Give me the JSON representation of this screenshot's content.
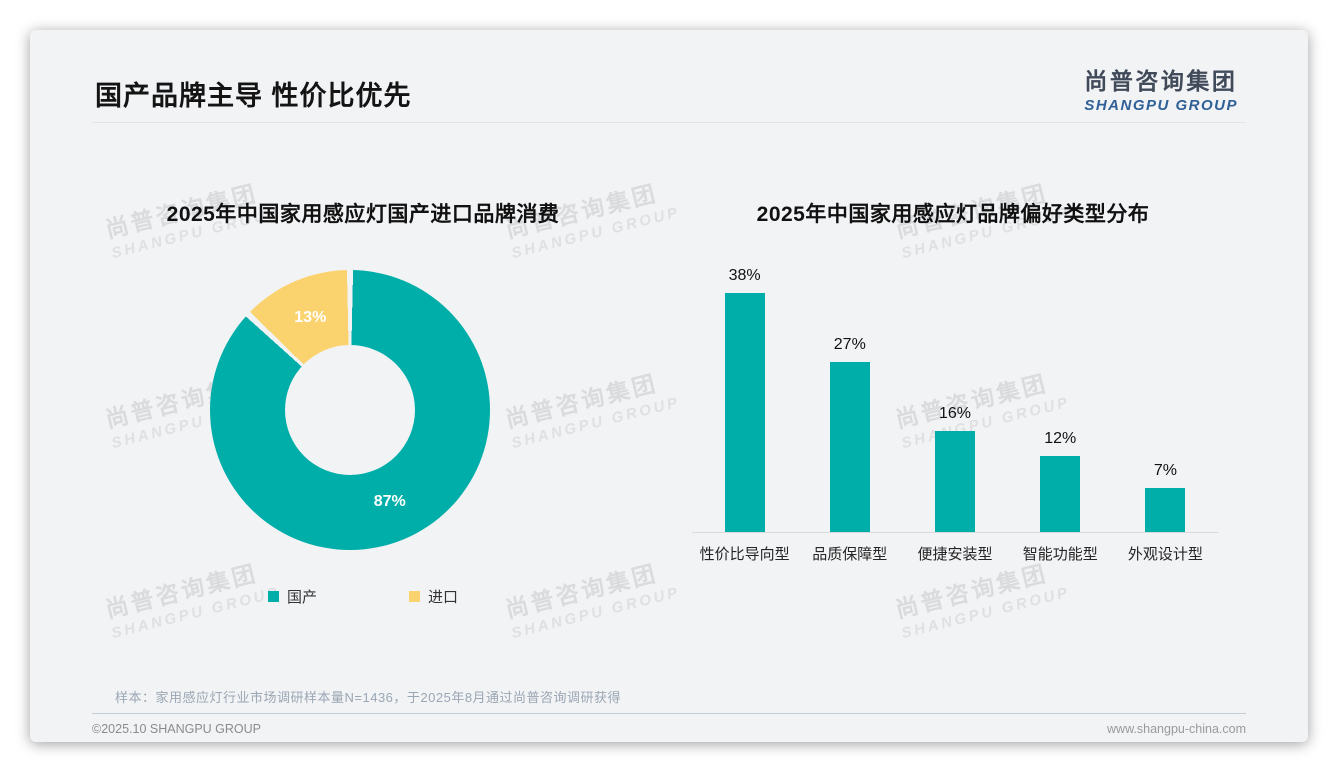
{
  "slide": {
    "title": "国产品牌主导 性价比优先",
    "logo": {
      "cn": "尚普咨询集团",
      "en": "SHANGPU GROUP"
    },
    "watermark": {
      "cn": "尚普咨询集团",
      "en": "SHANGPU GROUP"
    },
    "note": "样本：家用感应灯行业市场调研样本量N=1436，于2025年8月通过尚普咨询调研获得",
    "footer": {
      "left": "©2025.10 SHANGPU GROUP",
      "right": "www.shangpu-china.com"
    }
  },
  "colors": {
    "teal": "#00AEA9",
    "yellow": "#FBD36E",
    "card_bg": "#F2F3F5"
  },
  "chart_data": [
    {
      "type": "pie",
      "donut": true,
      "title": "2025年中国家用感应灯国产进口品牌消费",
      "categories": [
        "国产",
        "进口"
      ],
      "values": [
        87,
        13
      ],
      "labels": [
        "87%",
        "13%"
      ],
      "unit": "%",
      "colors": [
        "#00AEA9",
        "#FBD36E"
      ],
      "legend_position": "bottom"
    },
    {
      "type": "bar",
      "title": "2025年中国家用感应灯品牌偏好类型分布",
      "categories": [
        "性价比导向型",
        "品质保障型",
        "便捷安装型",
        "智能功能型",
        "外观设计型"
      ],
      "values": [
        38,
        27,
        16,
        12,
        7
      ],
      "labels": [
        "38%",
        "27%",
        "16%",
        "12%",
        "7%"
      ],
      "unit": "%",
      "bar_color": "#00AEA9",
      "ylim": [
        0,
        40
      ],
      "grid": false,
      "legend_position": "none"
    }
  ]
}
